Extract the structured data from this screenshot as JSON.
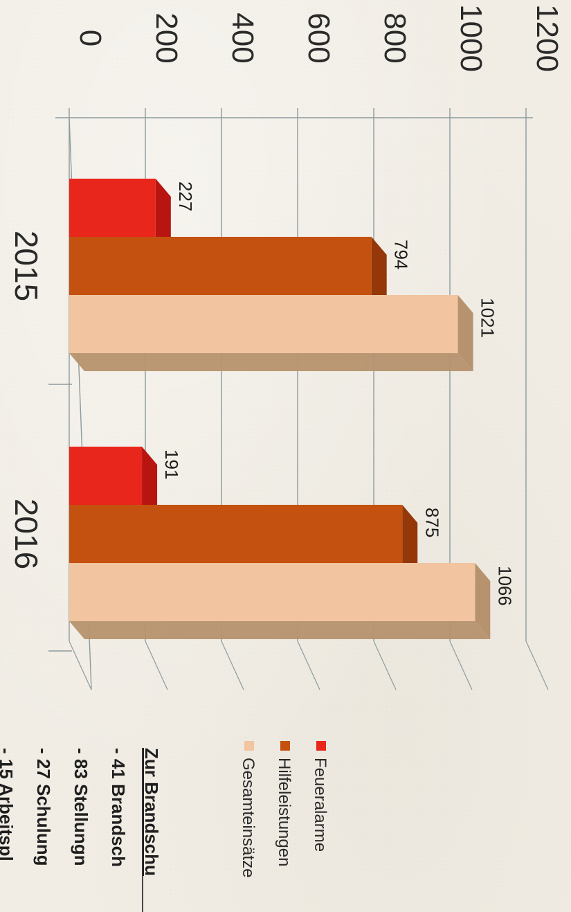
{
  "chart_data": {
    "type": "bar",
    "categories": [
      "2015",
      "2016"
    ],
    "series": [
      {
        "name": "Feueralarme",
        "values": [
          227,
          191
        ],
        "color": "#e8261c",
        "side": "#b81510"
      },
      {
        "name": "Hilfeleistungen",
        "values": [
          794,
          875
        ],
        "color": "#c4510f",
        "side": "#94380a"
      },
      {
        "name": "Gesamteinsätze",
        "values": [
          1021,
          1066
        ],
        "color": "#f2c4a0",
        "side": "#b6926e"
      }
    ],
    "ylim": [
      0,
      1200
    ],
    "yticks": [
      "0",
      "200",
      "400",
      "600",
      "800",
      "1000",
      "1200"
    ],
    "grid": true,
    "legend_position": "right",
    "orientation": "rotated-90-clockwise"
  },
  "notes": {
    "heading": "Zur Brandschu",
    "items": [
      "-   41 Brandsch",
      "-   83 Stellungn",
      "-   27 Schulung",
      "-   15 Arbeitspl"
    ]
  }
}
